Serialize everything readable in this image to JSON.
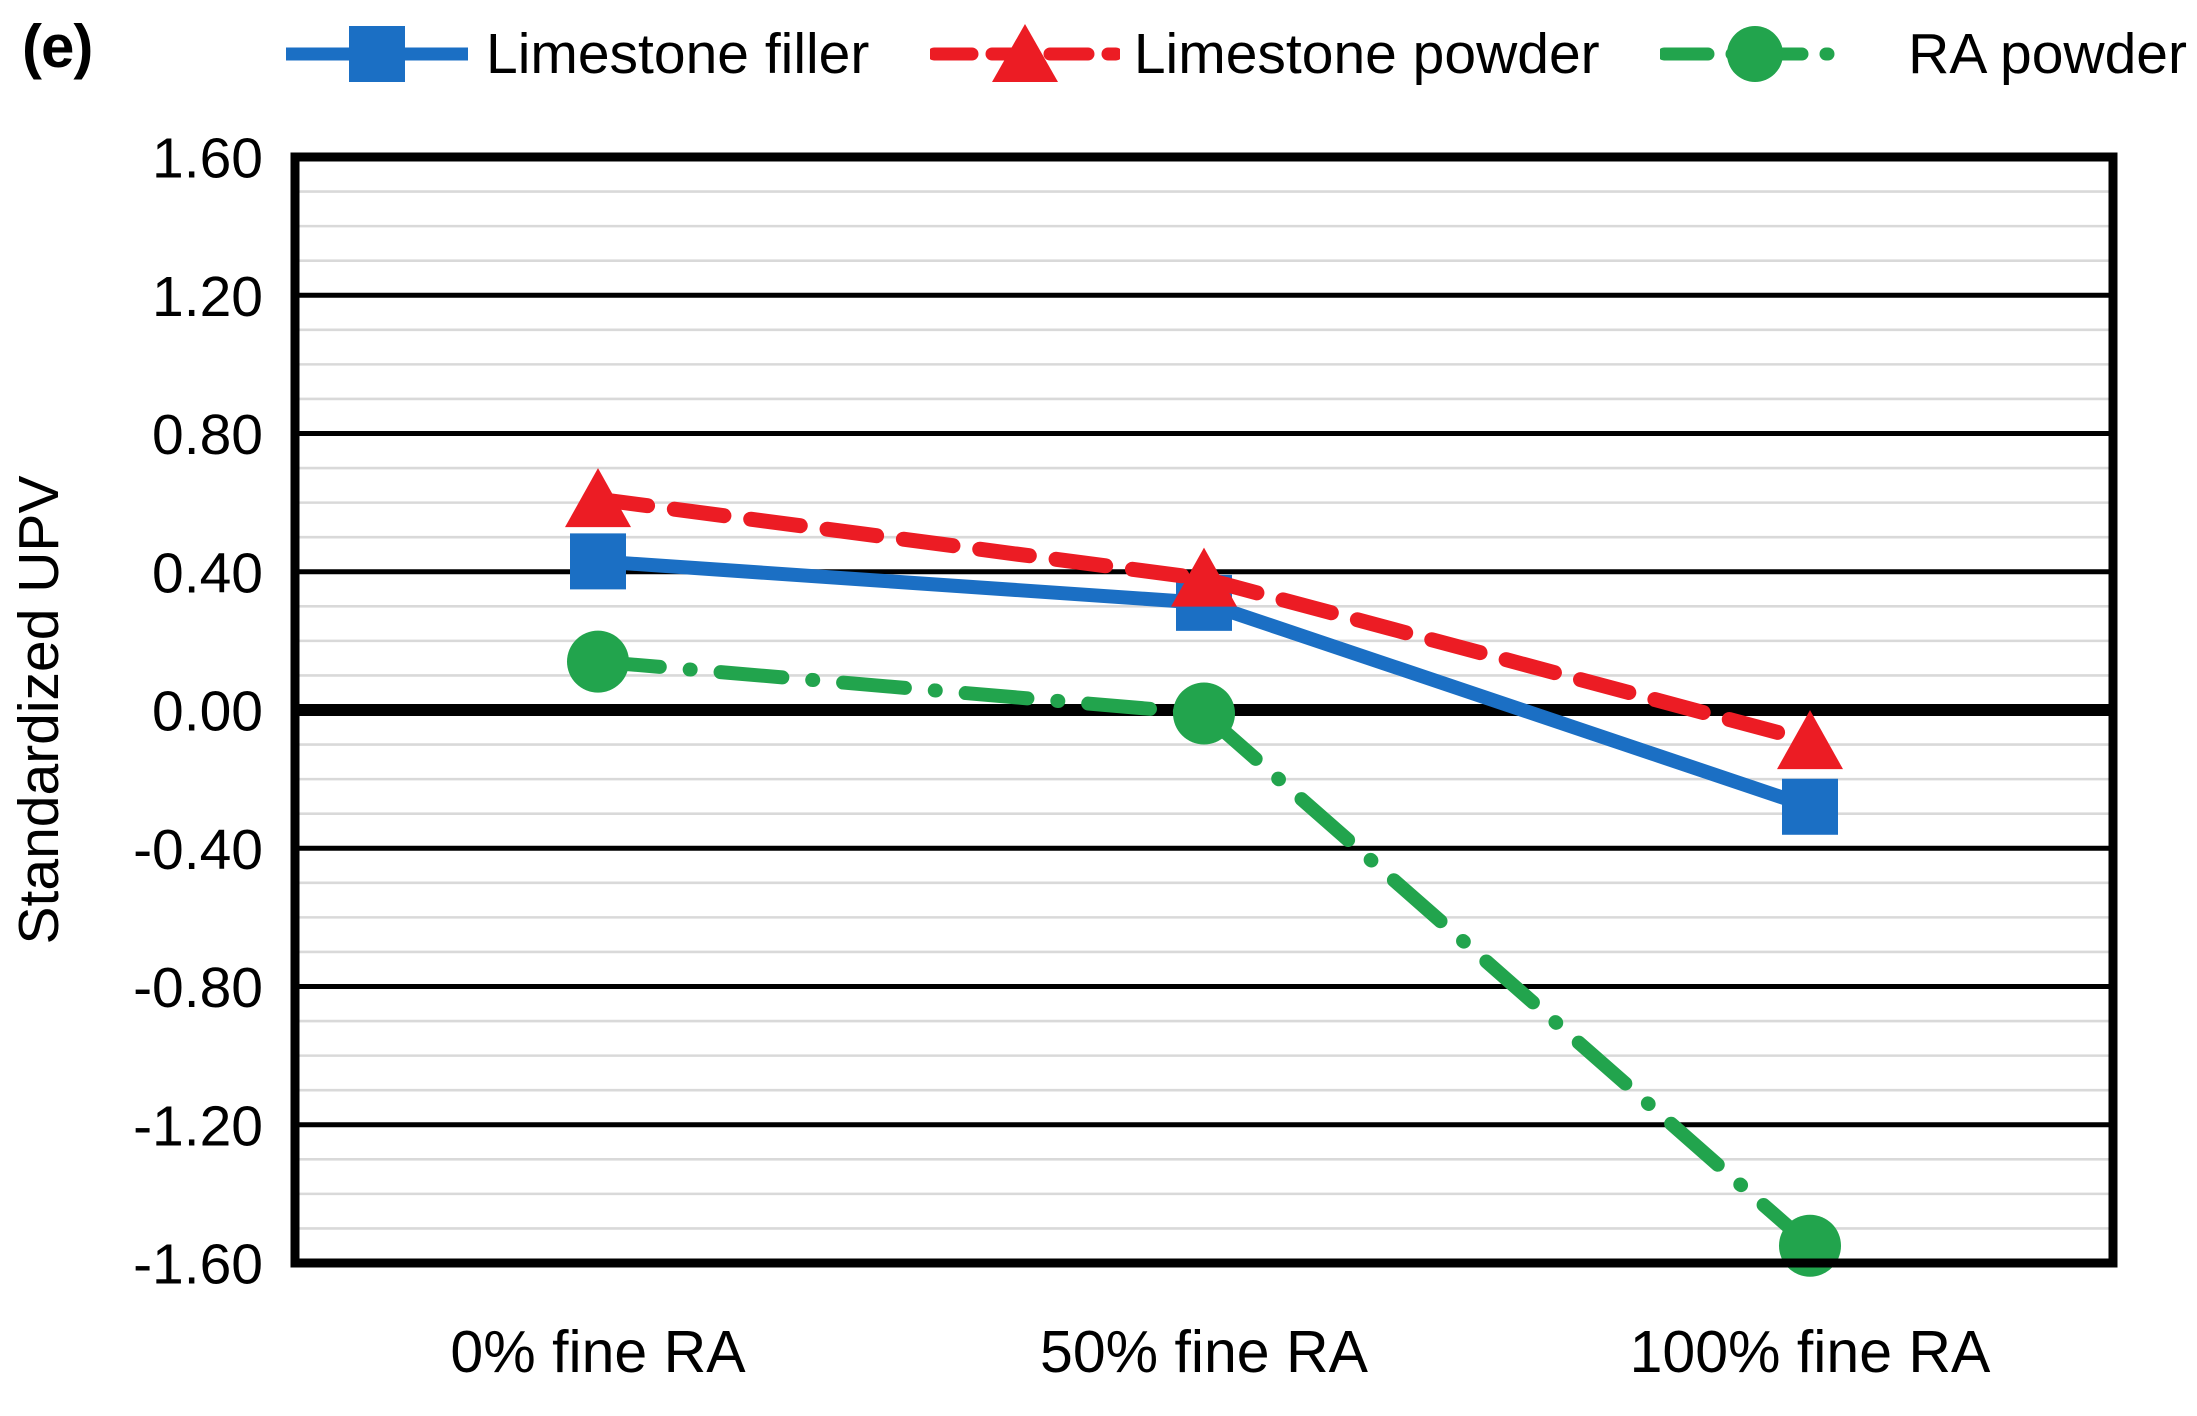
{
  "chart_data": {
    "type": "line",
    "panel_label": "(e)",
    "ylabel": "Standardized UPV",
    "categories": [
      "0% fine RA",
      "50% fine RA",
      "100% fine RA"
    ],
    "series": [
      {
        "name": "Limestone filler",
        "color": "#1B6FC4",
        "marker": "square",
        "line_style": "solid",
        "values": [
          0.43,
          0.31,
          -0.28
        ]
      },
      {
        "name": "Limestone powder",
        "color": "#EC1C24",
        "marker": "triangle",
        "line_style": "dashed",
        "values": [
          0.61,
          0.38,
          -0.09
        ]
      },
      {
        "name": "RA powder",
        "color": "#22A44D",
        "marker": "circle",
        "line_style": "dash-dot",
        "values": [
          0.14,
          -0.01,
          -1.55
        ]
      }
    ],
    "ylim": [
      -1.6,
      1.6
    ],
    "y_major_step": 0.4,
    "y_minor_step": 0.1,
    "y_tick_labels": [
      "1.60",
      "1.20",
      "0.80",
      "0.40",
      "0.00",
      "-0.40",
      "-0.80",
      "-1.20",
      "-1.60"
    ],
    "legend_position": "top",
    "grid": {
      "minor_color": "#D9D9D9",
      "major_color": "#000000",
      "zero_line_color": "#000000",
      "border_color": "#000000",
      "background": "#FFFFFF"
    }
  }
}
